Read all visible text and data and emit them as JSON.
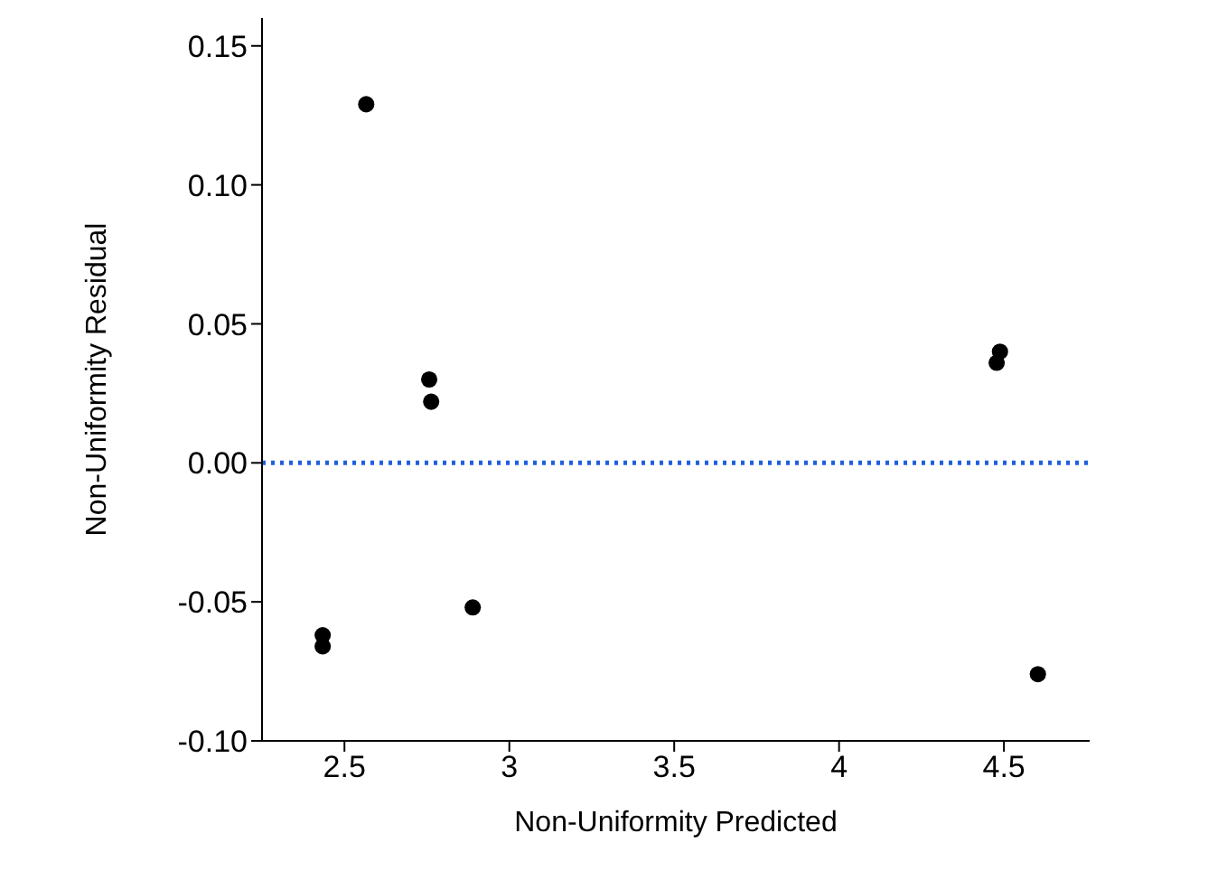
{
  "chart_data": {
    "type": "scatter",
    "xlabel": "Non-Uniformity Predicted",
    "ylabel": "Non-Uniformity Residual",
    "x": [
      2.566,
      2.757,
      2.763,
      2.434,
      2.434,
      2.889,
      4.478,
      4.488,
      4.603
    ],
    "series": [
      {
        "color": "#000000",
        "values": [
          0.129,
          0.03,
          0.022,
          -0.062,
          -0.066,
          -0.052,
          0.036,
          0.04,
          -0.076
        ]
      }
    ],
    "xlim": [
      2.25,
      4.76
    ],
    "xticks": [
      2.5,
      3,
      3.5,
      4,
      4.5
    ],
    "ylim": [
      -0.1,
      0.16
    ],
    "yticks": [
      {
        "value": -0.1,
        "label": "-0.10"
      },
      -0.05,
      {
        "value": 0,
        "label": "0.00"
      },
      0.05,
      {
        "value": 0.1,
        "label": "0.10"
      },
      0.15
    ],
    "ref_lines": [
      {
        "axis": "y",
        "value": 0,
        "color": "#1f5fe0",
        "line_style": "dotted"
      }
    ],
    "marker": "circle",
    "grid": false,
    "legend": false
  }
}
